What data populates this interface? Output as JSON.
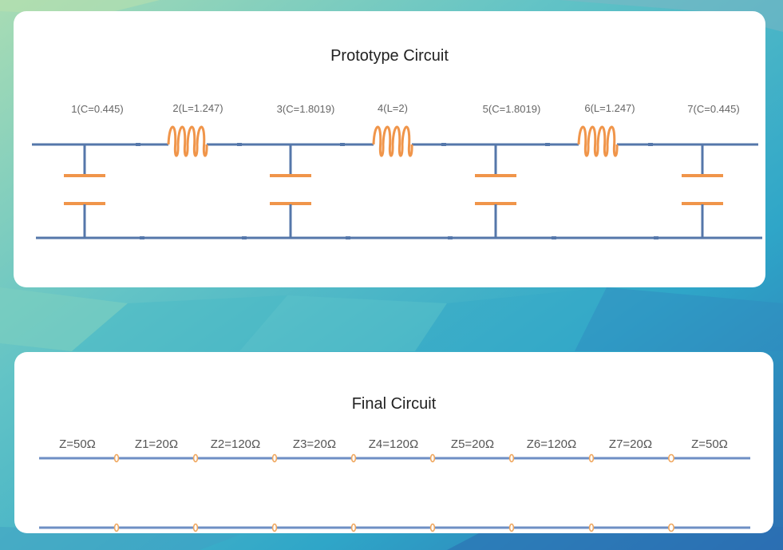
{
  "background": {
    "colors": [
      "#9fd7b8",
      "#5fc0c8",
      "#2ea7c9",
      "#2f79b8"
    ]
  },
  "prototype": {
    "title": "Prototype Circuit",
    "colors": {
      "wire": "#5577aa",
      "component": "#f0954a",
      "label": "#666666"
    },
    "elements": [
      {
        "label": "1(C=0.445)",
        "kind": "capacitor"
      },
      {
        "label": "2(L=1.247)",
        "kind": "inductor"
      },
      {
        "label": "3(C=1.8019)",
        "kind": "capacitor"
      },
      {
        "label": "4(L=2)",
        "kind": "inductor"
      },
      {
        "label": "5(C=1.8019)",
        "kind": "capacitor"
      },
      {
        "label": "6(L=1.247)",
        "kind": "inductor"
      },
      {
        "label": "7(C=0.445)",
        "kind": "capacitor"
      }
    ]
  },
  "final": {
    "title": "Final Circuit",
    "colors": {
      "wire": "#6e8fc4",
      "joint": "#f0a860",
      "label": "#555555"
    },
    "segments": [
      "Z=50Ω",
      "Z1=20Ω",
      "Z2=120Ω",
      "Z3=20Ω",
      "Z4=120Ω",
      "Z5=20Ω",
      "Z6=120Ω",
      "Z7=20Ω",
      "Z=50Ω"
    ]
  }
}
